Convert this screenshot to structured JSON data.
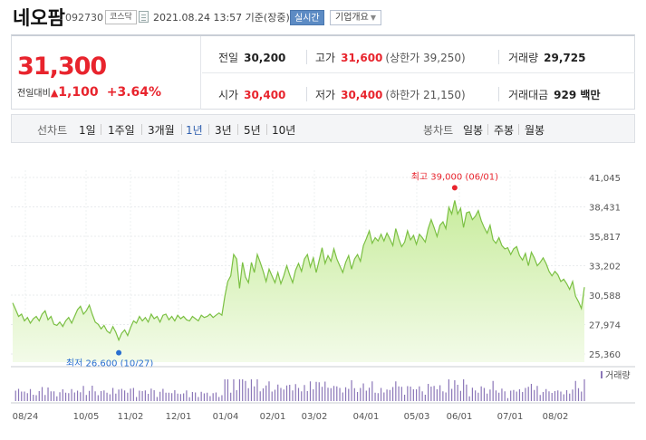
{
  "header": {
    "name": "네오팜",
    "code": "092730",
    "market": "코스닥",
    "timestamp": "2021.08.24 13:57 기준(장중)",
    "realtime_label": "실시간",
    "corp_info_label": "기업개요"
  },
  "price": {
    "current": "31,300",
    "change_label": "전일대비",
    "change_value": "1,100",
    "change_pct": "+3.64%"
  },
  "stats": {
    "prev_close": {
      "label": "전일",
      "value": "30,200"
    },
    "high": {
      "label": "고가",
      "value": "31,600",
      "sub": "(상한가 39,250)"
    },
    "volume": {
      "label": "거래량",
      "value": "29,725"
    },
    "open": {
      "label": "시가",
      "value": "30,400"
    },
    "low": {
      "label": "저가",
      "value": "30,400",
      "sub": "(하한가 21,150)"
    },
    "amount": {
      "label": "거래대금",
      "value": "929 백만"
    }
  },
  "periods": {
    "label": "선차트",
    "items": [
      "1일",
      "1주일",
      "3개월",
      "1년",
      "3년",
      "5년",
      "10년"
    ],
    "selected": "1년",
    "candle_label": "봉차트",
    "candle_items": [
      "일봉",
      "주봉",
      "월봉"
    ]
  },
  "chart_data": {
    "type": "area",
    "y_ticks": [
      "41,045",
      "38,431",
      "35,817",
      "33,202",
      "30,588",
      "27,974",
      "25,360"
    ],
    "ylim": [
      25360,
      41045
    ],
    "x_ticks": [
      "08/24",
      "10/05",
      "11/02",
      "12/01",
      "01/04",
      "02/01",
      "03/02",
      "04/01",
      "05/03",
      "06/01",
      "07/01",
      "08/02"
    ],
    "high_annotation": "최고 39,000 (06/01)",
    "low_annotation": "최저 26,600 (10/27)",
    "high_value": 39000,
    "low_value": 26600,
    "volume_label": "거래량",
    "line_color": "#7bc043",
    "fill_color": "#d6f0b8",
    "values": [
      29900,
      29300,
      28700,
      28900,
      28300,
      28600,
      28100,
      28500,
      28700,
      28300,
      28900,
      29200,
      28400,
      28700,
      28000,
      27900,
      28200,
      27800,
      28300,
      28600,
      28100,
      28700,
      29300,
      29600,
      28900,
      29200,
      29700,
      28900,
      28200,
      28000,
      27600,
      27900,
      27400,
      27200,
      27800,
      27300,
      26600,
      27200,
      27500,
      27000,
      27700,
      28300,
      28100,
      28700,
      28300,
      28600,
      28200,
      28900,
      28500,
      28700,
      28200,
      28800,
      28900,
      28400,
      28700,
      28300,
      28800,
      28500,
      28700,
      28400,
      28300,
      28700,
      28500,
      28300,
      28800,
      28600,
      28700,
      28900,
      28600,
      28800,
      29000,
      28800,
      30500,
      31800,
      32300,
      34200,
      33800,
      31200,
      33500,
      32200,
      31700,
      33500,
      32600,
      34200,
      33500,
      32700,
      31800,
      32900,
      32300,
      31700,
      32600,
      31600,
      32300,
      33200,
      32400,
      31700,
      32800,
      33400,
      32700,
      33800,
      34200,
      33100,
      33900,
      32600,
      33700,
      34800,
      33400,
      34100,
      33600,
      34700,
      33800,
      33200,
      32600,
      33500,
      34100,
      32900,
      33800,
      34200,
      33600,
      35000,
      35600,
      36300,
      35200,
      35700,
      35400,
      36000,
      35400,
      36100,
      35600,
      35000,
      36500,
      35600,
      34900,
      35300,
      36300,
      35500,
      35900,
      35100,
      36000,
      35700,
      35300,
      36500,
      37300,
      36600,
      35800,
      36800,
      37100,
      36500,
      38400,
      37800,
      39000,
      37800,
      38300,
      36600,
      37900,
      38000,
      37300,
      37600,
      38100,
      37200,
      36600,
      36100,
      36800,
      35500,
      35200,
      35700,
      35000,
      34700,
      34800,
      34200,
      34700,
      34900,
      34100,
      33700,
      34300,
      33200,
      34400,
      33900,
      33200,
      33500,
      33900,
      33400,
      32700,
      32300,
      32700,
      32400,
      31800,
      32000,
      31600,
      31100,
      31800,
      30500,
      30000,
      29400,
      31300
    ]
  }
}
